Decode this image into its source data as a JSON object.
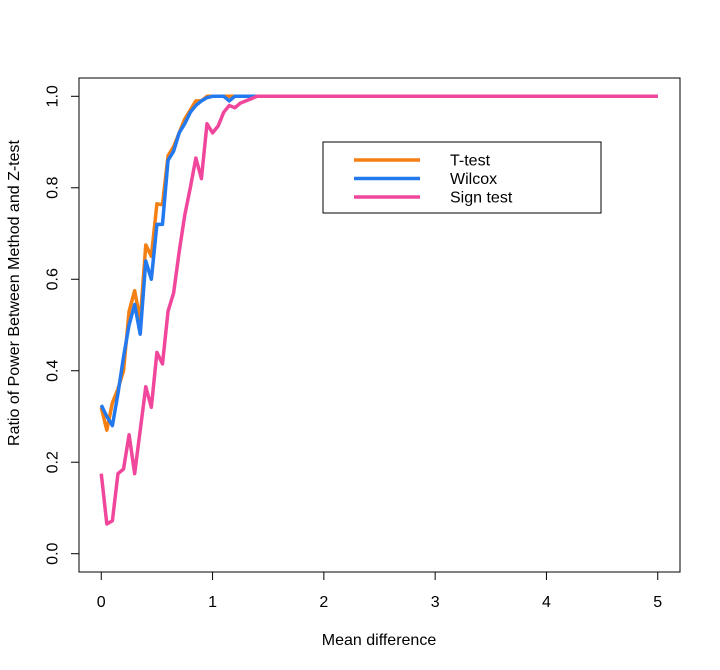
{
  "chart_data": {
    "type": "line",
    "title": "",
    "xlabel": "Mean difference",
    "ylabel": "Ratio of Power Between Method and Z-test",
    "xlim": [
      -0.2,
      5.2
    ],
    "ylim": [
      -0.04,
      1.04
    ],
    "x_ticks": [
      0,
      1,
      2,
      3,
      4,
      5
    ],
    "y_ticks": [
      0.0,
      0.2,
      0.4,
      0.6,
      0.8,
      1.0
    ],
    "x_tick_labels": [
      "0",
      "1",
      "2",
      "3",
      "4",
      "5"
    ],
    "y_tick_labels": [
      "0.0",
      "0.2",
      "0.4",
      "0.6",
      "0.8",
      "1.0"
    ],
    "grid": false,
    "legend_position": "top-right",
    "x": [
      0,
      0.05,
      0.1,
      0.15,
      0.2,
      0.25,
      0.3,
      0.35,
      0.4,
      0.45,
      0.5,
      0.55,
      0.6,
      0.65,
      0.7,
      0.75,
      0.8,
      0.85,
      0.9,
      0.95,
      1.0,
      1.05,
      1.1,
      1.15,
      1.2,
      1.25,
      1.3,
      1.35,
      1.4,
      1.5,
      1.6,
      1.8,
      2.0,
      2.5,
      3.0,
      3.5,
      4.0,
      4.5,
      5.0
    ],
    "series": [
      {
        "name": "T-test",
        "color": "#f47f12",
        "values": [
          0.32,
          0.27,
          0.33,
          0.36,
          0.4,
          0.53,
          0.575,
          0.51,
          0.675,
          0.65,
          0.765,
          0.763,
          0.87,
          0.89,
          0.92,
          0.95,
          0.97,
          0.99,
          0.99,
          1.0,
          1.0,
          1.0,
          1.0,
          1.0,
          1.0,
          1.0,
          1.0,
          1.0,
          1.0,
          1.0,
          1.0,
          1.0,
          1.0,
          1.0,
          1.0,
          1.0,
          1.0,
          1.0,
          1.0
        ]
      },
      {
        "name": "Wilcox",
        "color": "#2379ee",
        "values": [
          0.325,
          0.3,
          0.28,
          0.35,
          0.43,
          0.5,
          0.545,
          0.48,
          0.64,
          0.6,
          0.72,
          0.72,
          0.86,
          0.88,
          0.92,
          0.94,
          0.965,
          0.98,
          0.99,
          0.997,
          1.0,
          1.0,
          1.0,
          0.99,
          1.0,
          1.0,
          1.0,
          1.0,
          1.0,
          1.0,
          1.0,
          1.0,
          1.0,
          1.0,
          1.0,
          1.0,
          1.0,
          1.0,
          1.0
        ]
      },
      {
        "name": "Sign test",
        "color": "#f0479c",
        "values": [
          0.175,
          0.065,
          0.072,
          0.175,
          0.185,
          0.26,
          0.175,
          0.27,
          0.365,
          0.32,
          0.44,
          0.415,
          0.53,
          0.57,
          0.66,
          0.74,
          0.8,
          0.865,
          0.82,
          0.94,
          0.92,
          0.935,
          0.965,
          0.98,
          0.975,
          0.985,
          0.99,
          0.995,
          1.0,
          1.0,
          1.0,
          1.0,
          1.0,
          1.0,
          1.0,
          1.0,
          1.0,
          1.0,
          1.0
        ]
      }
    ]
  }
}
